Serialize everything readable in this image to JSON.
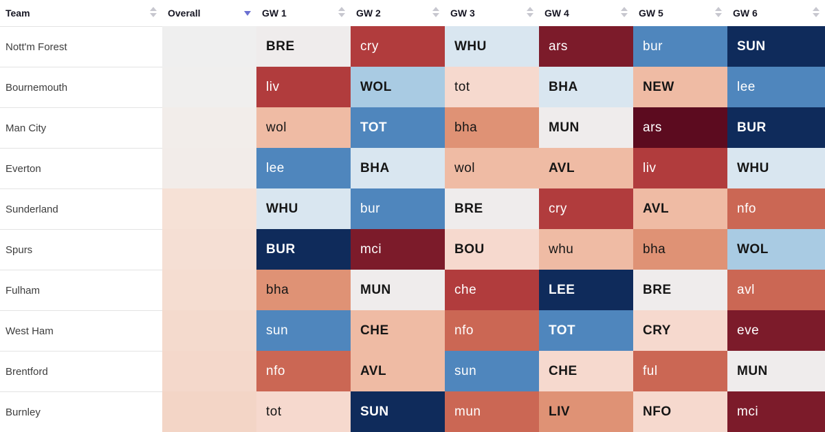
{
  "header": {
    "team_label": "Team",
    "overall_label": "Overall",
    "gameweeks": [
      "GW 1",
      "GW 2",
      "GW 3",
      "GW 4",
      "GW 5",
      "GW 6"
    ],
    "sorted_column": "Overall",
    "sort_icon": "sort-arrows-icon"
  },
  "palette": {
    "nd": "#0f2b5b",
    "nm": "#4f86bd",
    "nl": "#a9cbe3",
    "np": "#d9e6f0",
    "g": "#efecec",
    "pl": "#f6d9ce",
    "pm": "#efbba4",
    "m": "#df9275",
    "r": "#cb6754",
    "rd": "#b13c3d",
    "dr": "#7c1b2a",
    "dd": "#5c0b1f"
  },
  "light_text_levels": [
    "nd",
    "nm",
    "rd",
    "r",
    "dr",
    "dd"
  ],
  "rows": [
    {
      "team": "Nott'm Forest",
      "overall_color": "#efefef",
      "fixtures": [
        {
          "label": "BRE",
          "level": "g"
        },
        {
          "label": "cry",
          "level": "rd"
        },
        {
          "label": "WHU",
          "level": "np"
        },
        {
          "label": "ars",
          "level": "dr"
        },
        {
          "label": "bur",
          "level": "nm"
        },
        {
          "label": "SUN",
          "level": "nd"
        }
      ]
    },
    {
      "team": "Bournemouth",
      "overall_color": "#f0efee",
      "fixtures": [
        {
          "label": "liv",
          "level": "rd"
        },
        {
          "label": "WOL",
          "level": "nl"
        },
        {
          "label": "tot",
          "level": "pl"
        },
        {
          "label": "BHA",
          "level": "np"
        },
        {
          "label": "NEW",
          "level": "pm"
        },
        {
          "label": "lee",
          "level": "nm"
        }
      ]
    },
    {
      "team": "Man City",
      "overall_color": "#f2edea",
      "fixtures": [
        {
          "label": "wol",
          "level": "pm"
        },
        {
          "label": "TOT",
          "level": "nm"
        },
        {
          "label": "bha",
          "level": "m"
        },
        {
          "label": "MUN",
          "level": "g"
        },
        {
          "label": "ars",
          "level": "dd"
        },
        {
          "label": "BUR",
          "level": "nd"
        }
      ]
    },
    {
      "team": "Everton",
      "overall_color": "#f2ece9",
      "fixtures": [
        {
          "label": "lee",
          "level": "nm"
        },
        {
          "label": "BHA",
          "level": "np"
        },
        {
          "label": "wol",
          "level": "pm"
        },
        {
          "label": "AVL",
          "level": "pm"
        },
        {
          "label": "liv",
          "level": "rd"
        },
        {
          "label": "WHU",
          "level": "np"
        }
      ]
    },
    {
      "team": "Sunderland",
      "overall_color": "#f6e1d6",
      "fixtures": [
        {
          "label": "WHU",
          "level": "np"
        },
        {
          "label": "bur",
          "level": "nm"
        },
        {
          "label": "BRE",
          "level": "g"
        },
        {
          "label": "cry",
          "level": "rd"
        },
        {
          "label": "AVL",
          "level": "pm"
        },
        {
          "label": "nfo",
          "level": "r"
        }
      ]
    },
    {
      "team": "Spurs",
      "overall_color": "#f5dfd4",
      "fixtures": [
        {
          "label": "BUR",
          "level": "nd"
        },
        {
          "label": "mci",
          "level": "dr"
        },
        {
          "label": "BOU",
          "level": "pl"
        },
        {
          "label": "whu",
          "level": "pm"
        },
        {
          "label": "bha",
          "level": "m"
        },
        {
          "label": "WOL",
          "level": "nl"
        }
      ]
    },
    {
      "team": "Fulham",
      "overall_color": "#f5ddd1",
      "fixtures": [
        {
          "label": "bha",
          "level": "m"
        },
        {
          "label": "MUN",
          "level": "g"
        },
        {
          "label": "che",
          "level": "rd"
        },
        {
          "label": "LEE",
          "level": "nd"
        },
        {
          "label": "BRE",
          "level": "g"
        },
        {
          "label": "avl",
          "level": "r"
        }
      ]
    },
    {
      "team": "West Ham",
      "overall_color": "#f4dacd",
      "fixtures": [
        {
          "label": "sun",
          "level": "nm"
        },
        {
          "label": "CHE",
          "level": "pm"
        },
        {
          "label": "nfo",
          "level": "r"
        },
        {
          "label": "TOT",
          "level": "nm"
        },
        {
          "label": "CRY",
          "level": "pl"
        },
        {
          "label": "eve",
          "level": "dr"
        }
      ]
    },
    {
      "team": "Brentford",
      "overall_color": "#f4d8cb",
      "fixtures": [
        {
          "label": "nfo",
          "level": "r"
        },
        {
          "label": "AVL",
          "level": "pm"
        },
        {
          "label": "sun",
          "level": "nm"
        },
        {
          "label": "CHE",
          "level": "pl"
        },
        {
          "label": "ful",
          "level": "r"
        },
        {
          "label": "MUN",
          "level": "g"
        }
      ]
    },
    {
      "team": "Burnley",
      "overall_color": "#f3d5c6",
      "fixtures": [
        {
          "label": "tot",
          "level": "pl"
        },
        {
          "label": "SUN",
          "level": "nd"
        },
        {
          "label": "mun",
          "level": "r"
        },
        {
          "label": "LIV",
          "level": "m"
        },
        {
          "label": "NFO",
          "level": "pl"
        },
        {
          "label": "mci",
          "level": "dr"
        }
      ]
    }
  ]
}
